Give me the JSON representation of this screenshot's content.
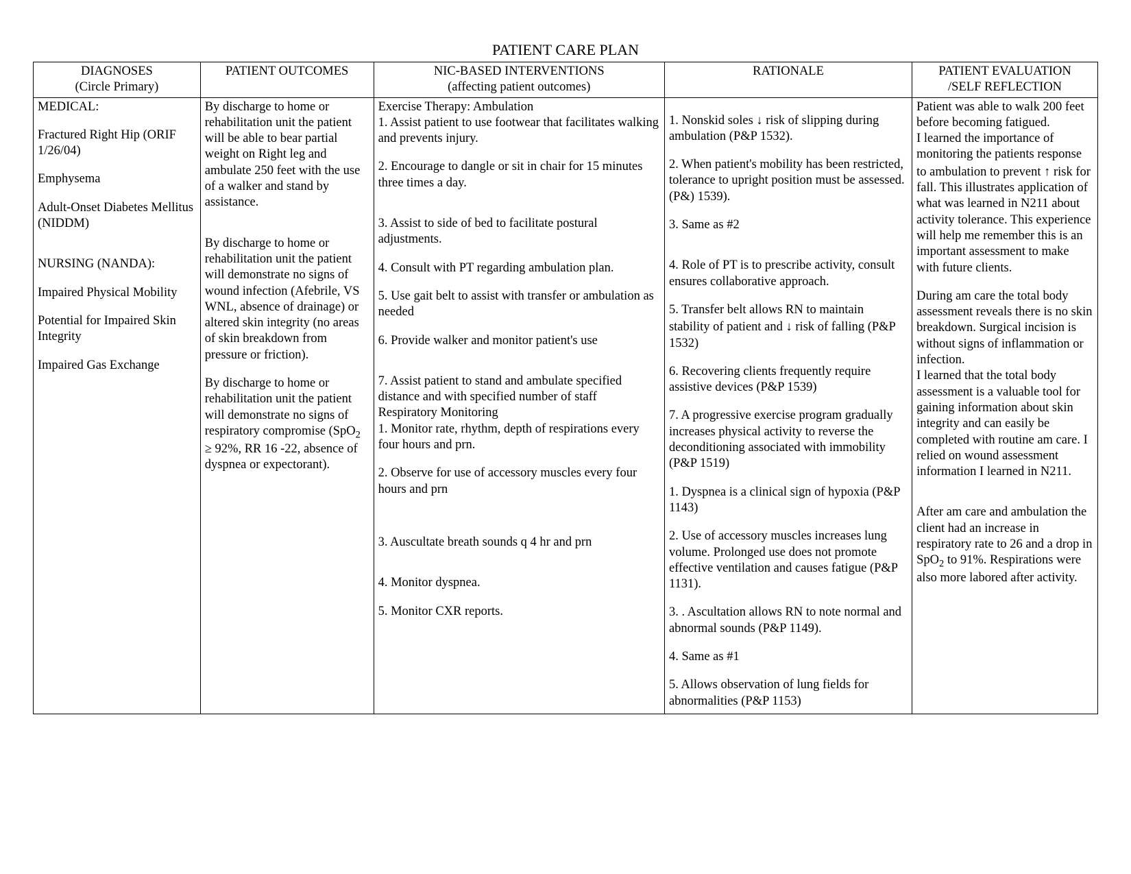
{
  "document": {
    "title": "PATIENT CARE PLAN",
    "font_family": "Times New Roman",
    "font_size_pt": 14,
    "title_font_size_pt": 16,
    "text_color": "#000000",
    "background_color": "#ffffff",
    "border_color": "#000000"
  },
  "columns": {
    "diagnoses": {
      "header_line1": "DIAGNOSES",
      "header_line2": "(Circle Primary)",
      "width_pct": 13.5
    },
    "outcomes": {
      "header_line1": "PATIENT OUTCOMES",
      "header_line2": "",
      "width_pct": 14.0
    },
    "interventions": {
      "header_line1": "NIC-BASED INTERVENTIONS",
      "header_line2": "(affecting patient outcomes)",
      "width_pct": 23.5
    },
    "rationale": {
      "header_line1": "RATIONALE",
      "header_line2": "",
      "width_pct": 20.0
    },
    "evaluation": {
      "header_line1": "PATIENT EVALUATION",
      "header_line2": "/SELF REFLECTION",
      "width_pct": 15.0
    }
  },
  "diagnoses": {
    "medical_label": "MEDICAL:",
    "medical_items": [
      "Fractured  Right Hip (ORIF 1/26/04)",
      "Emphysema",
      "Adult-Onset Diabetes Mellitus (NIDDM)"
    ],
    "nursing_label": "NURSING (NANDA):",
    "nursing_items": [
      "Impaired Physical Mobility",
      "Potential for Impaired Skin Integrity",
      "Impaired Gas Exchange"
    ]
  },
  "outcomes": [
    "By discharge to home or rehabilitation unit the patient will be able to bear partial weight on Right leg and ambulate 250 feet with the use of a walker and stand by assistance.",
    "By discharge to home or rehabilitation unit the patient will demonstrate no signs of wound infection (Afebrile,  VS WNL, absence of drainage) or altered skin integrity (no areas of skin breakdown from pressure or friction).",
    "By discharge to home or rehabilitation unit the patient will demonstrate no signs of respiratory compromise (SpO₂ ≥ 92%, RR 16 -22, absence of dyspnea or expectorant)."
  ],
  "interventions": {
    "section1_title": "Exercise Therapy: Ambulation",
    "section1_items": [
      "1.  Assist patient to use footwear that facilitates walking and prevents injury.",
      "2.  Encourage to dangle or sit in chair for 15 minutes three times a day.",
      "3.  Assist to side of bed to facilitate  postural adjustments.",
      "4.  Consult with PT regarding ambulation plan.",
      "5.  Use gait belt to assist with transfer or ambulation as needed",
      "6.  Provide walker and monitor patient's use",
      "7.  Assist patient to stand and ambulate specified distance and with specified number of staff"
    ],
    "section2_title": "Respiratory Monitoring",
    "section2_items": [
      "1.  Monitor rate, rhythm, depth of respirations every four hours and prn.",
      "2.  Observe for use of accessory muscles every four hours and prn",
      "3.  Auscultate breath sounds q 4 hr and prn",
      "4.  Monitor dyspnea.",
      "5.  Monitor CXR reports."
    ]
  },
  "rationale": {
    "section1_items": [
      "1.  Nonskid soles ↓ risk of slipping during ambulation (P&P 1532).",
      "2.  When patient's mobility has been restricted, tolerance to upright position must be assessed. (P&) 1539).",
      "3.  Same as #2",
      "4.  Role of PT is to prescribe activity, consult ensures collaborative approach.",
      "5.  Transfer belt allows RN to maintain stability of patient and ↓ risk of falling (P&P 1532)",
      "6.  Recovering clients frequently require assistive devices (P&P 1539)",
      "7.  A progressive exercise program gradually increases physical activity to reverse the deconditioning associated with immobility (P&P 1519)"
    ],
    "section2_items": [
      "1.  Dyspnea is a clinical sign of hypoxia (P&P 1143)",
      "2.  Use of accessory muscles increases lung volume.  Prolonged use does not promote effective ventilation and causes fatigue (P&P 1131).",
      "3. . Ascultation allows RN to note normal and abnormal sounds (P&P 1149).",
      "4.  Same as #1",
      "5.  Allows observation of lung fields for abnormalities (P&P 1153)"
    ]
  },
  "evaluation": [
    "Patient was able to walk 200 feet before becoming fatigued.",
    "I learned the importance of monitoring the patients response to ambulation  to prevent ↑ risk for fall.  This illustrates application of what was learned in N211 about activity tolerance.  This experience will help me remember this is an important assessment to make with future clients.",
    "During am care  the total body assessment reveals there is no skin breakdown. Surgical incision is without signs of inflammation or infection.",
    "I learned that the total body assessment is a valuable tool for gaining information about skin integrity and can easily be completed with routine am care.  I relied on wound assessment information I learned in N211.",
    "After am care and ambulation the client had an increase in respiratory rate to 26 and a drop in SpO₂ to 91%.  Respirations were also more labored after activity."
  ]
}
